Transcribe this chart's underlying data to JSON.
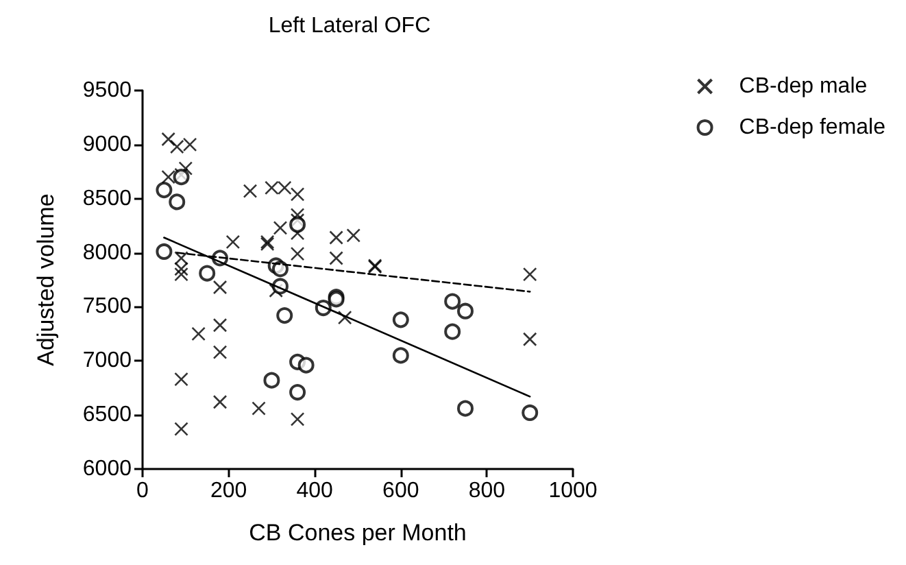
{
  "chart_data": {
    "type": "scatter",
    "title": "Left Lateral OFC",
    "xlabel": "CB Cones per Month",
    "ylabel": "Adjusted volume",
    "xlim": [
      0,
      1000
    ],
    "xticks": [
      0,
      200,
      400,
      600,
      800,
      1000
    ],
    "ylim": [
      6000,
      9500
    ],
    "yticks": [
      6000,
      6500,
      7000,
      7500,
      8000,
      8500,
      9000,
      9500
    ],
    "grid": false,
    "legend": "top right",
    "series": [
      {
        "name": "CB-dep male",
        "color": "#000000",
        "marker": "cross",
        "line_style": "dashed",
        "x": [
          60,
          80,
          110,
          60,
          90,
          100,
          90,
          90,
          90,
          90,
          90,
          130,
          180,
          180,
          180,
          180,
          210,
          250,
          290,
          290,
          270,
          300,
          330,
          320,
          310,
          360,
          360,
          360,
          360,
          360,
          360,
          450,
          490,
          450,
          470,
          540,
          540,
          900,
          900
        ],
        "values": [
          9050,
          8980,
          9000,
          8700,
          8720,
          8780,
          7950,
          7850,
          7800,
          6830,
          6370,
          7250,
          7680,
          7330,
          7080,
          6620,
          8100,
          8570,
          8100,
          8080,
          6560,
          8600,
          8600,
          8230,
          7650,
          8540,
          8350,
          8300,
          8180,
          7990,
          6460,
          8140,
          8160,
          7950,
          7400,
          7880,
          7870,
          7800,
          7200
        ]
      },
      {
        "name": "CB-dep female",
        "color": "#000000",
        "marker": "circle",
        "line_style": "solid",
        "x": [
          50,
          50,
          90,
          80,
          150,
          180,
          310,
          320,
          320,
          330,
          300,
          360,
          360,
          380,
          360,
          420,
          450,
          450,
          600,
          600,
          720,
          750,
          720,
          750,
          900
        ],
        "values": [
          8580,
          8010,
          8700,
          8470,
          7810,
          7950,
          7880,
          7850,
          7690,
          7420,
          6820,
          8260,
          6990,
          6960,
          6710,
          7490,
          7590,
          7570,
          7380,
          7050,
          7550,
          7460,
          7270,
          6560,
          6520
        ]
      },
      {
        "type": "line",
        "color": "#000000",
        "marker": "none",
        "line_style": "dashed",
        "x": [
          80,
          900
        ],
        "values": [
          8000,
          7640
        ]
      },
      {
        "type": "line",
        "color": "#000000",
        "marker": "none",
        "line_style": "solid",
        "x": [
          50,
          900
        ],
        "values": [
          8140,
          6670
        ]
      }
    ]
  }
}
